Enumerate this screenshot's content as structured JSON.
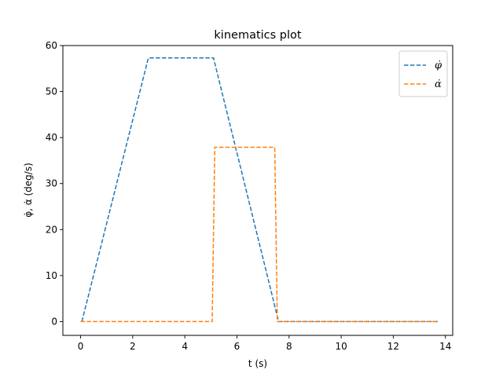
{
  "chart_data": {
    "type": "line",
    "title": "kinematics plot",
    "xlabel": "t (s)",
    "ylabel": "φ̇, α̇ (deg/s)",
    "xlim": [
      -0.68,
      14.28
    ],
    "ylim": [
      -3,
      60
    ],
    "xticks": [
      0,
      2,
      4,
      6,
      8,
      10,
      12,
      14
    ],
    "yticks": [
      0,
      10,
      20,
      30,
      40,
      50,
      60
    ],
    "grid": false,
    "legend_position": "top-right",
    "series": [
      {
        "name": "φ̇",
        "color": "#1f77b4",
        "linestyle": "dashed",
        "x": [
          0.05,
          2.6,
          5.1,
          7.6,
          13.7
        ],
        "y": [
          0,
          57.3,
          57.3,
          0,
          0
        ]
      },
      {
        "name": "α̇",
        "color": "#ff7f0e",
        "linestyle": "dashed",
        "x": [
          0.0,
          5.05,
          5.15,
          7.45,
          7.55,
          13.7
        ],
        "y": [
          0,
          0,
          37.9,
          37.9,
          0,
          0
        ]
      }
    ]
  }
}
